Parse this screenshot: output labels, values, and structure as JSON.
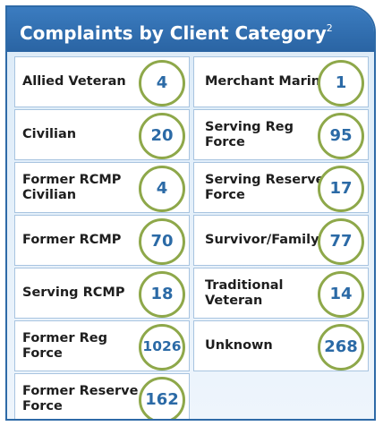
{
  "header": {
    "title": "Complaints by Client Category",
    "footnote": "2"
  },
  "categories": [
    {
      "label": "Allied Veteran",
      "count": "4"
    },
    {
      "label": "Civilian",
      "count": "20"
    },
    {
      "label": "Former RCMP Civilian",
      "count": "4"
    },
    {
      "label": "Former RCMP",
      "count": "70"
    },
    {
      "label": "Serving RCMP",
      "count": "18"
    },
    {
      "label": "Former Reg Force",
      "count": "1026"
    },
    {
      "label": "Former Reserve Force",
      "count": "162"
    },
    {
      "label": "Merchant Marine",
      "count": "1"
    },
    {
      "label": "Serving Reg Force",
      "count": "95"
    },
    {
      "label": "Serving Reserve Force",
      "count": "17"
    },
    {
      "label": "Survivor/Family",
      "count": "77"
    },
    {
      "label": "Traditional Veteran",
      "count": "14"
    },
    {
      "label": "Unknown",
      "count": "268"
    }
  ],
  "colors": {
    "header": "#2e6aa7",
    "number": "#2b6aa6",
    "circle_border": "#8ea84a",
    "panel_background": "#dcebf8"
  }
}
